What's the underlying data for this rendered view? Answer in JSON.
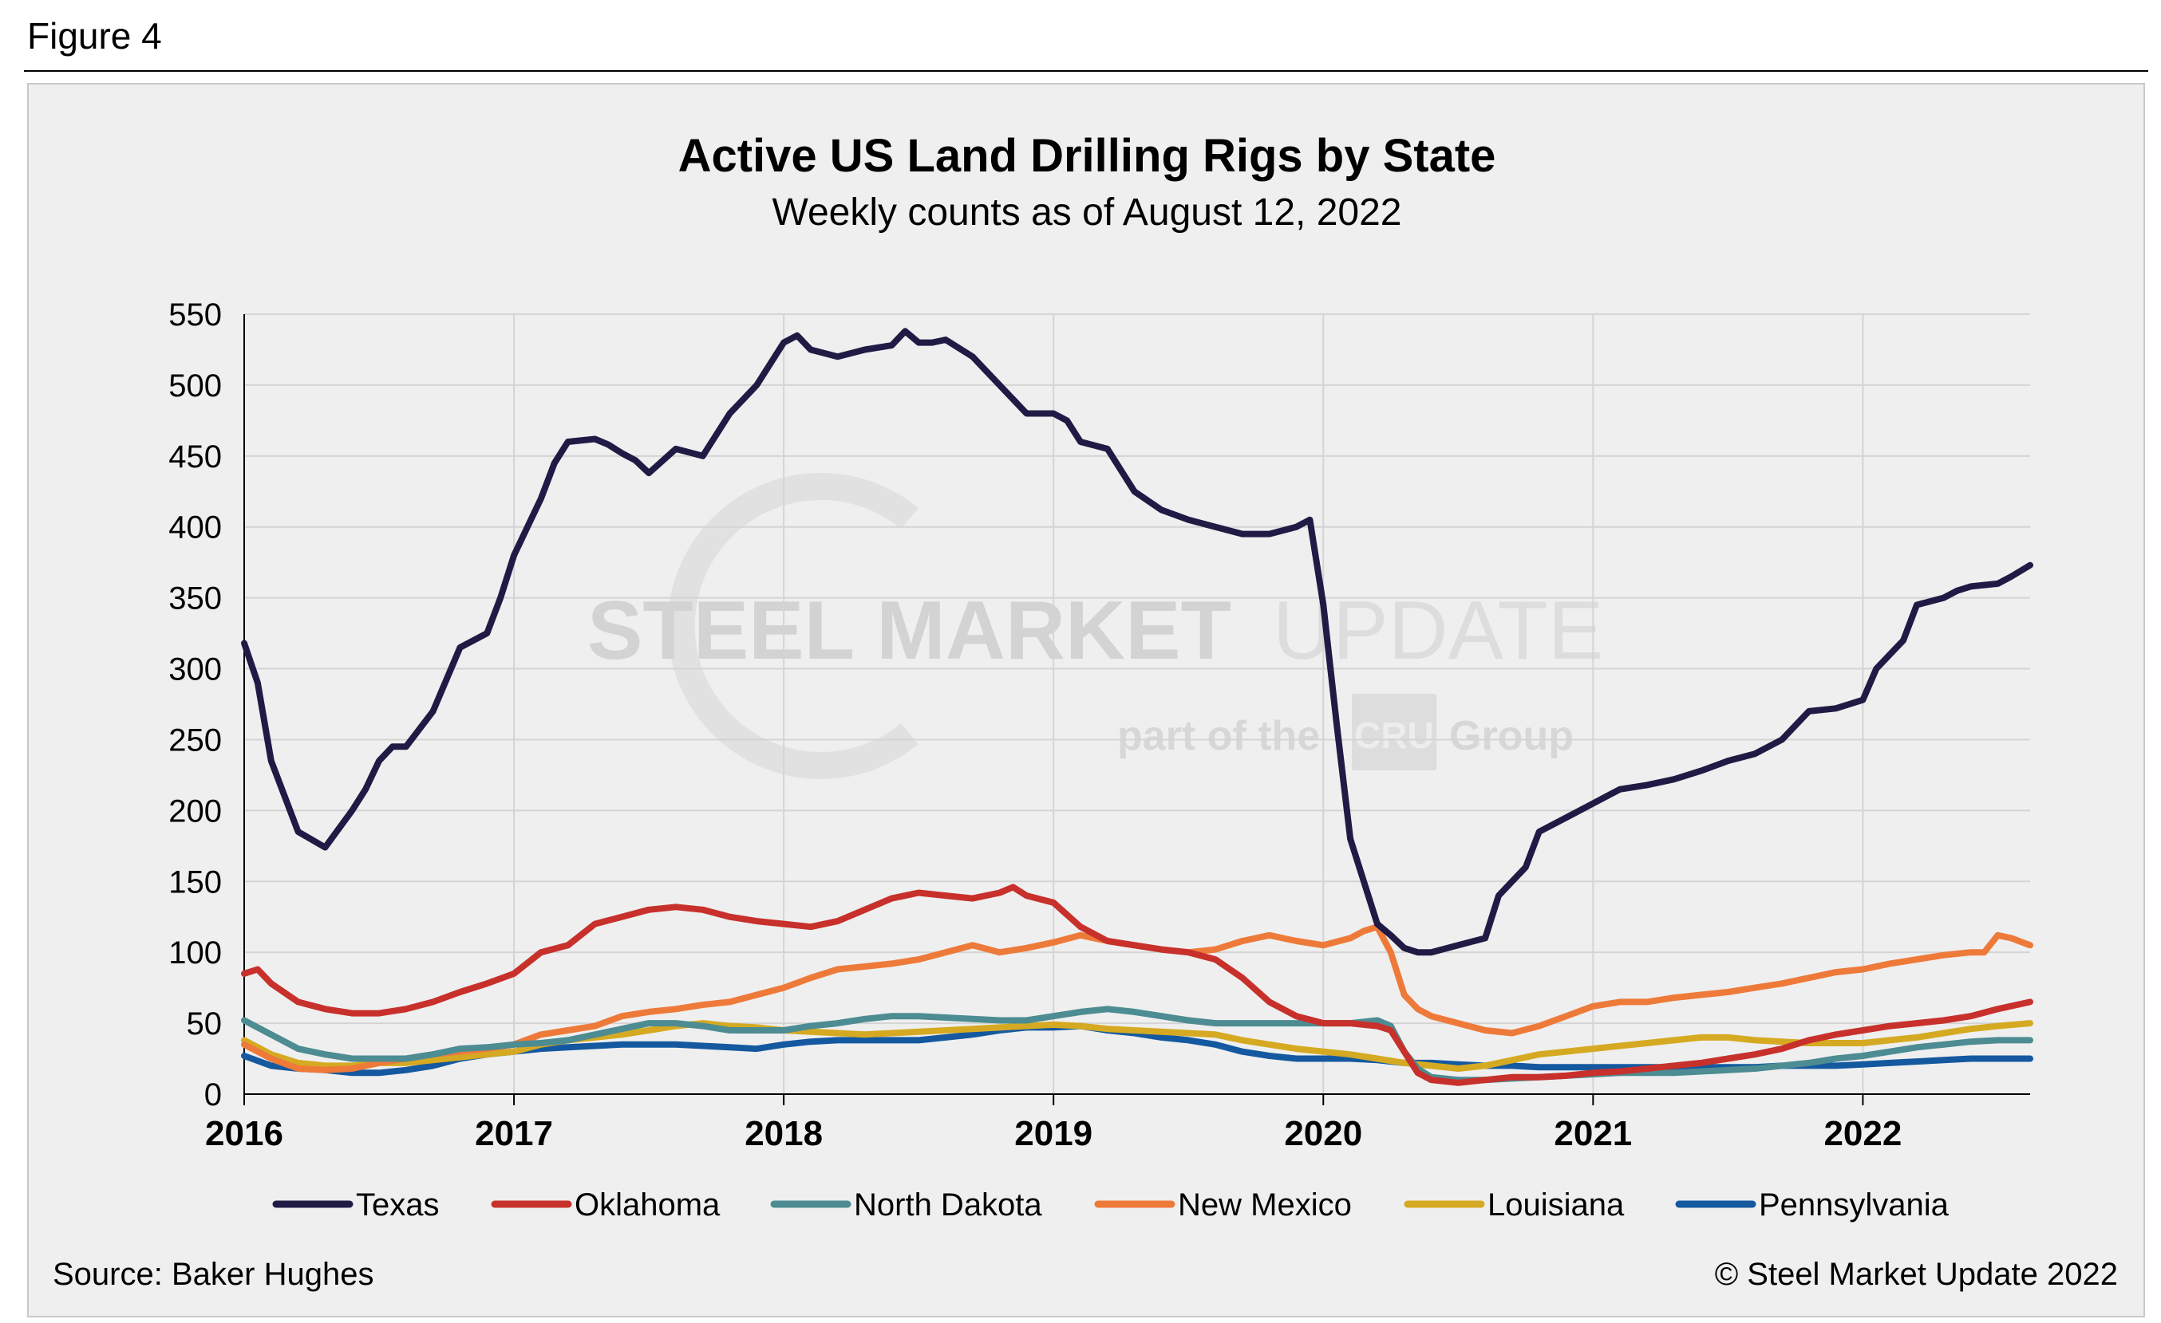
{
  "figure_label": "Figure 4",
  "source": "Source: Baker Hughes",
  "copyright": "© Steel Market Update 2022",
  "watermark": {
    "line1_bold": "STEEL MARKET",
    "line1_light": "UPDATE",
    "line2_a": "part of the",
    "line2_logo": "CRU",
    "line2_b": "Group"
  },
  "colors": {
    "Texas": "#1f1b45",
    "Oklahoma": "#c8302b",
    "North Dakota": "#4c8c92",
    "New Mexico": "#ee7a3a",
    "Louisiana": "#d5aa22",
    "Pennsylvania": "#1459a0"
  },
  "chart_data": {
    "type": "line",
    "title": "Active US Land Drilling Rigs by State",
    "subtitle": "Weekly counts as of August 12, 2022",
    "xlabel": "",
    "ylabel": "",
    "xlim": [
      2016.0,
      2022.62
    ],
    "ylim": [
      0,
      550
    ],
    "yticks": [
      0,
      50,
      100,
      150,
      200,
      250,
      300,
      350,
      400,
      450,
      500,
      550
    ],
    "xticks": [
      "2016",
      "2017",
      "2018",
      "2019",
      "2020",
      "2021",
      "2022"
    ],
    "grid": true,
    "legend": "bottom",
    "series": [
      {
        "name": "Texas",
        "x": [
          2016.0,
          2016.05,
          2016.1,
          2016.15,
          2016.2,
          2016.3,
          2016.4,
          2016.45,
          2016.5,
          2016.55,
          2016.6,
          2016.7,
          2016.8,
          2016.9,
          2016.95,
          2017.0,
          2017.05,
          2017.1,
          2017.15,
          2017.2,
          2017.3,
          2017.35,
          2017.4,
          2017.45,
          2017.5,
          2017.6,
          2017.7,
          2017.8,
          2017.85,
          2017.9,
          2018.0,
          2018.05,
          2018.1,
          2018.2,
          2018.3,
          2018.4,
          2018.45,
          2018.5,
          2018.55,
          2018.6,
          2018.7,
          2018.75,
          2018.8,
          2018.9,
          2019.0,
          2019.05,
          2019.1,
          2019.2,
          2019.25,
          2019.3,
          2019.4,
          2019.5,
          2019.6,
          2019.7,
          2019.8,
          2019.9,
          2019.95,
          2020.0,
          2020.05,
          2020.1,
          2020.2,
          2020.25,
          2020.3,
          2020.35,
          2020.4,
          2020.5,
          2020.6,
          2020.65,
          2020.7,
          2020.75,
          2020.8,
          2020.9,
          2021.0,
          2021.05,
          2021.1,
          2021.2,
          2021.3,
          2021.4,
          2021.5,
          2021.6,
          2021.7,
          2021.8,
          2021.9,
          2022.0,
          2022.05,
          2022.1,
          2022.15,
          2022.2,
          2022.3,
          2022.35,
          2022.4,
          2022.5,
          2022.55,
          2022.62
        ],
        "values": [
          318,
          290,
          235,
          210,
          185,
          174,
          200,
          215,
          235,
          245,
          245,
          270,
          315,
          325,
          350,
          380,
          400,
          420,
          445,
          460,
          462,
          458,
          452,
          447,
          438,
          455,
          450,
          480,
          490,
          500,
          530,
          535,
          525,
          520,
          525,
          528,
          538,
          530,
          530,
          532,
          520,
          510,
          500,
          480,
          480,
          475,
          460,
          455,
          440,
          425,
          412,
          405,
          400,
          395,
          395,
          400,
          405,
          345,
          260,
          180,
          120,
          112,
          103,
          100,
          100,
          105,
          110,
          140,
          150,
          160,
          185,
          195,
          205,
          210,
          215,
          218,
          222,
          228,
          235,
          240,
          250,
          270,
          272,
          278,
          300,
          310,
          320,
          345,
          350,
          355,
          358,
          360,
          365,
          373
        ]
      },
      {
        "name": "Oklahoma",
        "x": [
          2016.0,
          2016.05,
          2016.1,
          2016.2,
          2016.3,
          2016.4,
          2016.5,
          2016.6,
          2016.7,
          2016.8,
          2016.9,
          2017.0,
          2017.1,
          2017.2,
          2017.3,
          2017.4,
          2017.5,
          2017.6,
          2017.7,
          2017.8,
          2017.9,
          2018.0,
          2018.1,
          2018.2,
          2018.3,
          2018.4,
          2018.5,
          2018.6,
          2018.7,
          2018.8,
          2018.85,
          2018.9,
          2019.0,
          2019.1,
          2019.2,
          2019.3,
          2019.4,
          2019.5,
          2019.6,
          2019.7,
          2019.8,
          2019.9,
          2020.0,
          2020.1,
          2020.2,
          2020.25,
          2020.3,
          2020.35,
          2020.4,
          2020.5,
          2020.6,
          2020.7,
          2020.8,
          2020.9,
          2021.0,
          2021.1,
          2021.2,
          2021.3,
          2021.4,
          2021.5,
          2021.6,
          2021.7,
          2021.8,
          2021.9,
          2022.0,
          2022.1,
          2022.2,
          2022.3,
          2022.4,
          2022.5,
          2022.62
        ],
        "values": [
          85,
          88,
          78,
          65,
          60,
          57,
          57,
          60,
          65,
          72,
          78,
          85,
          100,
          105,
          120,
          125,
          130,
          132,
          130,
          125,
          122,
          120,
          118,
          122,
          130,
          138,
          142,
          140,
          138,
          142,
          146,
          140,
          135,
          118,
          108,
          105,
          102,
          100,
          95,
          82,
          65,
          55,
          50,
          50,
          48,
          45,
          30,
          15,
          10,
          8,
          10,
          12,
          12,
          13,
          15,
          16,
          18,
          20,
          22,
          25,
          28,
          32,
          38,
          42,
          45,
          48,
          50,
          52,
          55,
          60,
          65
        ]
      },
      {
        "name": "North Dakota",
        "x": [
          2016.0,
          2016.1,
          2016.2,
          2016.3,
          2016.4,
          2016.5,
          2016.6,
          2016.7,
          2016.8,
          2016.9,
          2017.0,
          2017.1,
          2017.2,
          2017.3,
          2017.4,
          2017.5,
          2017.6,
          2017.7,
          2017.8,
          2017.9,
          2018.0,
          2018.1,
          2018.2,
          2018.3,
          2018.4,
          2018.5,
          2018.6,
          2018.7,
          2018.8,
          2018.9,
          2019.0,
          2019.1,
          2019.2,
          2019.3,
          2019.4,
          2019.5,
          2019.6,
          2019.7,
          2019.8,
          2019.9,
          2020.0,
          2020.1,
          2020.2,
          2020.25,
          2020.3,
          2020.35,
          2020.4,
          2020.5,
          2020.6,
          2020.7,
          2020.8,
          2020.9,
          2021.0,
          2021.1,
          2021.2,
          2021.3,
          2021.4,
          2021.5,
          2021.6,
          2021.7,
          2021.8,
          2021.9,
          2022.0,
          2022.1,
          2022.2,
          2022.3,
          2022.4,
          2022.5,
          2022.62
        ],
        "values": [
          52,
          42,
          32,
          28,
          25,
          25,
          25,
          28,
          32,
          33,
          35,
          36,
          38,
          42,
          46,
          50,
          50,
          48,
          45,
          45,
          45,
          48,
          50,
          53,
          55,
          55,
          54,
          53,
          52,
          52,
          55,
          58,
          60,
          58,
          55,
          52,
          50,
          50,
          50,
          50,
          50,
          50,
          52,
          48,
          30,
          18,
          12,
          10,
          10,
          11,
          12,
          13,
          14,
          15,
          15,
          15,
          16,
          17,
          18,
          20,
          22,
          25,
          27,
          30,
          33,
          35,
          37,
          38,
          38
        ]
      },
      {
        "name": "New Mexico",
        "x": [
          2016.0,
          2016.1,
          2016.2,
          2016.3,
          2016.4,
          2016.5,
          2016.6,
          2016.7,
          2016.8,
          2016.9,
          2017.0,
          2017.1,
          2017.2,
          2017.3,
          2017.4,
          2017.5,
          2017.6,
          2017.7,
          2017.8,
          2017.9,
          2018.0,
          2018.1,
          2018.2,
          2018.3,
          2018.4,
          2018.5,
          2018.6,
          2018.7,
          2018.8,
          2018.9,
          2019.0,
          2019.1,
          2019.2,
          2019.3,
          2019.4,
          2019.5,
          2019.6,
          2019.7,
          2019.8,
          2019.9,
          2020.0,
          2020.1,
          2020.15,
          2020.2,
          2020.25,
          2020.3,
          2020.35,
          2020.4,
          2020.5,
          2020.6,
          2020.7,
          2020.8,
          2020.9,
          2021.0,
          2021.1,
          2021.2,
          2021.3,
          2021.4,
          2021.5,
          2021.6,
          2021.7,
          2021.8,
          2021.9,
          2022.0,
          2022.1,
          2022.2,
          2022.3,
          2022.4,
          2022.45,
          2022.5,
          2022.55,
          2022.62
        ],
        "values": [
          35,
          25,
          18,
          17,
          18,
          22,
          25,
          28,
          30,
          32,
          35,
          42,
          45,
          48,
          55,
          58,
          60,
          63,
          65,
          70,
          75,
          82,
          88,
          90,
          92,
          95,
          100,
          105,
          100,
          103,
          107,
          112,
          108,
          105,
          102,
          100,
          102,
          108,
          112,
          108,
          105,
          110,
          115,
          118,
          100,
          70,
          60,
          55,
          50,
          45,
          43,
          48,
          55,
          62,
          65,
          65,
          68,
          70,
          72,
          75,
          78,
          82,
          86,
          88,
          92,
          95,
          98,
          100,
          100,
          112,
          110,
          105
        ]
      },
      {
        "name": "Louisiana",
        "x": [
          2016.0,
          2016.1,
          2016.2,
          2016.3,
          2016.4,
          2016.5,
          2016.6,
          2016.7,
          2016.8,
          2016.9,
          2017.0,
          2017.1,
          2017.2,
          2017.3,
          2017.4,
          2017.5,
          2017.6,
          2017.7,
          2017.8,
          2017.9,
          2018.0,
          2018.1,
          2018.2,
          2018.3,
          2018.4,
          2018.5,
          2018.6,
          2018.7,
          2018.8,
          2018.9,
          2019.0,
          2019.1,
          2019.2,
          2019.3,
          2019.4,
          2019.5,
          2019.6,
          2019.7,
          2019.8,
          2019.9,
          2020.0,
          2020.1,
          2020.2,
          2020.3,
          2020.4,
          2020.5,
          2020.6,
          2020.7,
          2020.8,
          2020.9,
          2021.0,
          2021.1,
          2021.2,
          2021.3,
          2021.4,
          2021.5,
          2021.6,
          2021.7,
          2021.8,
          2021.9,
          2022.0,
          2022.1,
          2022.2,
          2022.3,
          2022.4,
          2022.5,
          2022.62
        ],
        "values": [
          38,
          28,
          22,
          20,
          20,
          22,
          22,
          24,
          26,
          28,
          30,
          35,
          38,
          40,
          42,
          45,
          48,
          50,
          48,
          47,
          45,
          44,
          43,
          42,
          43,
          44,
          45,
          46,
          47,
          48,
          49,
          48,
          46,
          45,
          44,
          43,
          42,
          38,
          35,
          32,
          30,
          28,
          25,
          22,
          20,
          18,
          20,
          24,
          28,
          30,
          32,
          34,
          36,
          38,
          40,
          40,
          38,
          37,
          36,
          36,
          36,
          38,
          40,
          43,
          46,
          48,
          50
        ]
      },
      {
        "name": "Pennsylvania",
        "x": [
          2016.0,
          2016.1,
          2016.2,
          2016.3,
          2016.4,
          2016.5,
          2016.6,
          2016.7,
          2016.8,
          2016.9,
          2017.0,
          2017.1,
          2017.2,
          2017.3,
          2017.4,
          2017.5,
          2017.6,
          2017.7,
          2017.8,
          2017.9,
          2018.0,
          2018.1,
          2018.2,
          2018.3,
          2018.4,
          2018.5,
          2018.6,
          2018.7,
          2018.8,
          2018.9,
          2019.0,
          2019.1,
          2019.2,
          2019.3,
          2019.4,
          2019.5,
          2019.6,
          2019.7,
          2019.8,
          2019.9,
          2020.0,
          2020.1,
          2020.2,
          2020.3,
          2020.4,
          2020.5,
          2020.6,
          2020.7,
          2020.8,
          2020.9,
          2021.0,
          2021.1,
          2021.2,
          2021.3,
          2021.4,
          2021.5,
          2021.6,
          2021.7,
          2021.8,
          2021.9,
          2022.0,
          2022.1,
          2022.2,
          2022.3,
          2022.4,
          2022.5,
          2022.62
        ],
        "values": [
          27,
          20,
          18,
          17,
          15,
          15,
          17,
          20,
          25,
          28,
          30,
          32,
          33,
          34,
          35,
          35,
          35,
          34,
          33,
          32,
          35,
          37,
          38,
          38,
          38,
          38,
          40,
          42,
          45,
          47,
          47,
          48,
          45,
          43,
          40,
          38,
          35,
          30,
          27,
          25,
          25,
          25,
          24,
          22,
          22,
          21,
          20,
          20,
          19,
          19,
          19,
          19,
          19,
          19,
          19,
          19,
          19,
          20,
          20,
          20,
          21,
          22,
          23,
          24,
          25,
          25,
          25
        ]
      }
    ]
  }
}
